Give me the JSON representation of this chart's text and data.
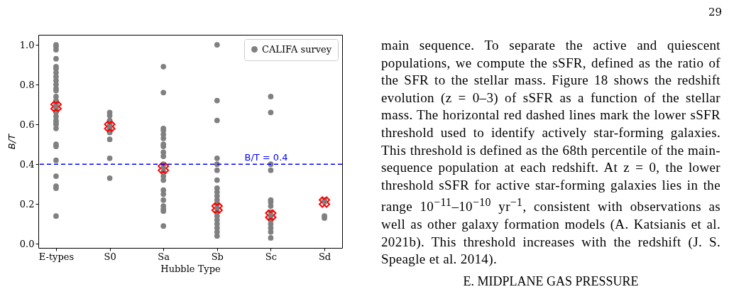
{
  "chart_data": {
    "type": "scatter",
    "xlabel": "Hubble Type",
    "ylabel": "B/T",
    "categories": [
      "E-types",
      "S0",
      "Sa",
      "Sb",
      "Sc",
      "Sd"
    ],
    "ylim": [
      -0.02,
      1.05
    ],
    "yticks": [
      {
        "value": 0,
        "label": "0.0"
      },
      {
        "value": 0.2,
        "label": "0.2"
      },
      {
        "value": 0.4,
        "label": "0.4"
      },
      {
        "value": 0.6,
        "label": "0.6"
      },
      {
        "value": 0.8,
        "label": "0.8"
      },
      {
        "value": 1,
        "label": "1.0"
      }
    ],
    "grid": false,
    "legend": "top right",
    "series": [
      {
        "name": "CALIFA survey",
        "color": "#808080",
        "marker": "circle",
        "x": [
          "E-types",
          "E-types",
          "E-types",
          "E-types",
          "E-types",
          "E-types",
          "E-types",
          "E-types",
          "E-types",
          "E-types",
          "E-types",
          "E-types",
          "E-types",
          "E-types",
          "E-types",
          "E-types",
          "E-types",
          "E-types",
          "E-types",
          "E-types",
          "E-types",
          "E-types",
          "E-types",
          "E-types",
          "E-types",
          "E-types",
          "E-types",
          "E-types",
          "E-types",
          "S0",
          "S0",
          "S0",
          "S0",
          "S0",
          "S0",
          "S0",
          "S0",
          "S0",
          "Sa",
          "Sa",
          "Sa",
          "Sa",
          "Sa",
          "Sa",
          "Sa",
          "Sa",
          "Sa",
          "Sa",
          "Sa",
          "Sa",
          "Sa",
          "Sa",
          "Sa",
          "Sa",
          "Sa",
          "Sa",
          "Sa",
          "Sa",
          "Sa",
          "Sa",
          "Sb",
          "Sb",
          "Sb",
          "Sb",
          "Sb",
          "Sb",
          "Sb",
          "Sb",
          "Sb",
          "Sb",
          "Sb",
          "Sb",
          "Sb",
          "Sb",
          "Sb",
          "Sb",
          "Sb",
          "Sb",
          "Sb",
          "Sb",
          "Sc",
          "Sc",
          "Sc",
          "Sc",
          "Sc",
          "Sc",
          "Sc",
          "Sc",
          "Sc",
          "Sc",
          "Sc",
          "Sc",
          "Sc",
          "Sc",
          "Sd",
          "Sd",
          "Sd",
          "Sd"
        ],
        "values": [
          1.0,
          0.99,
          0.975,
          0.93,
          0.89,
          0.88,
          0.86,
          0.84,
          0.82,
          0.8,
          0.78,
          0.77,
          0.74,
          0.72,
          0.7,
          0.68,
          0.66,
          0.64,
          0.62,
          0.61,
          0.6,
          0.58,
          0.5,
          0.49,
          0.42,
          0.34,
          0.29,
          0.28,
          0.14,
          0.66,
          0.645,
          0.62,
          0.6,
          0.58,
          0.56,
          0.525,
          0.43,
          0.33,
          0.89,
          0.76,
          0.58,
          0.57,
          0.55,
          0.53,
          0.5,
          0.49,
          0.46,
          0.44,
          0.4,
          0.38,
          0.36,
          0.34,
          0.32,
          0.27,
          0.25,
          0.22,
          0.19,
          0.175,
          0.165,
          0.09,
          1.0,
          0.72,
          0.62,
          0.43,
          0.4,
          0.37,
          0.32,
          0.28,
          0.26,
          0.24,
          0.22,
          0.2,
          0.18,
          0.16,
          0.14,
          0.12,
          0.1,
          0.08,
          0.06,
          0.04,
          0.74,
          0.66,
          0.4,
          0.37,
          0.22,
          0.21,
          0.19,
          0.16,
          0.14,
          0.12,
          0.1,
          0.08,
          0.06,
          0.03,
          0.22,
          0.21,
          0.14,
          0.13
        ]
      },
      {
        "color": "#ff0000",
        "marker": "cross",
        "x": [
          "E-types",
          "S0",
          "Sa",
          "Sb",
          "Sc",
          "Sd"
        ],
        "values": [
          0.69,
          0.59,
          0.38,
          0.18,
          0.144,
          0.21
        ]
      }
    ],
    "ref_lines": [
      {
        "axis": "y",
        "value": 0.4,
        "label": "B/T = 0.4",
        "color": "#0000ff",
        "line_style": "dashed"
      }
    ],
    "annotations": [
      "29",
      "main sequence.  To separate the active and quiescent populations, we compute the sSFR, defined as the ratio of the SFR to the stellar mass.  Figure 18 shows the redshift evolution (z = 0–3) of sSFR as a function of the stellar mass. The horizontal red dashed lines mark the lower sSFR threshold used to identify actively star-forming galaxies. This threshold is defined as the 68th percentile of the main-sequence population at each redshift.  At z = 0, the lower threshold sSFR for active star-forming galaxies lies in the range 10$^{−11}$–10$^{−10}$ yr$^{−1}$, consistent with observations as well as other galaxy formation models (A. Katsianis et al. 2021b). This threshold increases with the redshift (J. S. Speagle et al. 2014).",
      "E.  MIDPLANE GAS PRESSURE"
    ]
  }
}
